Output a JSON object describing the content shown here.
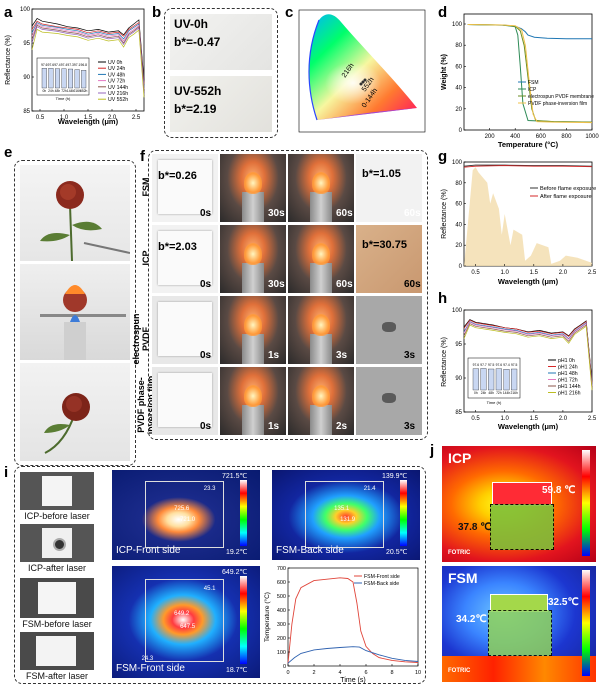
{
  "panels": {
    "a": {
      "letter": "a",
      "ylabel": "Reflectance (%)",
      "xlabel": "Wavelength (μm)",
      "yticks": [
        "100",
        "95",
        "90",
        "85"
      ],
      "xticks": [
        "0.5",
        "1.0",
        "1.5",
        "2.0",
        "2.5"
      ],
      "legend": [
        "UV 0h",
        "UV 24h",
        "UV 48h",
        "UV 72h",
        "UV 144h",
        "UV 216h",
        "UV 552h"
      ],
      "colors": [
        "#000000",
        "#d62728",
        "#1f77b4",
        "#e377c2",
        "#8c564b",
        "#9467bd",
        "#bcbd22"
      ],
      "inset": {
        "bar_labels": [
          "97.6",
          "97.6",
          "97.4",
          "97.4",
          "97.3",
          "97.1",
          "96.8"
        ],
        "x_ticks": [
          "0h",
          "24h",
          "48h",
          "72h",
          "144h",
          "216h",
          "552h"
        ],
        "xlabel": "Time (h)",
        "ylabel": "Reflectance (%)"
      }
    },
    "b": {
      "letter": "b",
      "top_title": "UV-0h",
      "top_value": "b*=-0.47",
      "bottom_title": "UV-552h",
      "bottom_value": "b*=2.19"
    },
    "c": {
      "letter": "c",
      "annotations": [
        "216h",
        "552h",
        "0-144h"
      ]
    },
    "d": {
      "letter": "d",
      "ylabel": "Weight (%)",
      "xlabel": "Temperature (°C)",
      "yticks": [
        "100",
        "80",
        "60",
        "40",
        "20",
        "0"
      ],
      "xticks": [
        "200",
        "400",
        "600",
        "800",
        "1000"
      ],
      "legend": [
        "FSM",
        "ICP",
        "electrospun PVDF membrane",
        "PVDF phase-inversion film"
      ],
      "colors": [
        "#1f77b4",
        "#2e8b57",
        "#6b8e23",
        "#f0c04a"
      ]
    },
    "e": {
      "letter": "e"
    },
    "f": {
      "letter": "f",
      "rows": [
        {
          "label": "FSM",
          "b_start": "b*=0.26",
          "b_end": "b*=1.05",
          "times": [
            "0s",
            "30s",
            "60s",
            "60s"
          ]
        },
        {
          "label": "ICP",
          "b_start": "b*=2.03",
          "b_end": "b*=30.75",
          "times": [
            "0s",
            "30s",
            "60s",
            "60s"
          ]
        },
        {
          "label": "electrospun PVDF membrane",
          "times": [
            "0s",
            "1s",
            "3s",
            "3s"
          ]
        },
        {
          "label": "PVDF phase-inversion film",
          "times": [
            "0s",
            "1s",
            "2s",
            "3s"
          ]
        }
      ]
    },
    "g": {
      "letter": "g",
      "ylabel": "Reflectance (%)",
      "xlabel": "Wavelength (μm)",
      "yticks": [
        "100",
        "80",
        "60",
        "40",
        "20",
        "0"
      ],
      "xticks": [
        "0.5",
        "1.0",
        "1.5",
        "2.0",
        "2.5"
      ],
      "legend": [
        "Before flame exposure",
        "After flame exposure"
      ],
      "colors": [
        "#333333",
        "#d62728"
      ]
    },
    "h": {
      "letter": "h",
      "ylabel": "Reflectance (%)",
      "xlabel": "Wavelength (μm)",
      "yticks": [
        "100",
        "95",
        "90",
        "85"
      ],
      "xticks": [
        "0.5",
        "1.0",
        "1.5",
        "2.0",
        "2.5"
      ],
      "legend": [
        "pH1 0h",
        "pH1 24h",
        "pH1 48h",
        "pH1 72h",
        "pH1 144h",
        "pH1 216h"
      ],
      "colors": [
        "#000000",
        "#d62728",
        "#1f77b4",
        "#e377c2",
        "#8c564b",
        "#bcbd22"
      ],
      "inset": {
        "bar_labels": [
          "97.6",
          "97.7",
          "97.5",
          "97.6",
          "97.4",
          "97.5"
        ],
        "x_ticks": [
          "0h",
          "24h",
          "48h",
          "72h",
          "144h",
          "216h"
        ],
        "xlabel": "Time (h)",
        "ylabel": "Reflectance (%)"
      }
    },
    "i": {
      "letter": "i",
      "photos": [
        "ICP-before laser",
        "ICP-after laser",
        "FSM-before laser",
        "FSM-after laser"
      ],
      "thermal": [
        {
          "caption": "ICP-Front side",
          "max": "721.5℃",
          "min": "19.2℃",
          "spots": [
            "23.3",
            "725.6",
            "721.0"
          ]
        },
        {
          "caption": "FSM-Back side",
          "max": "139.9℃",
          "min": "20.5℃",
          "spots": [
            "21.4",
            "135.1",
            "131.9"
          ]
        },
        {
          "caption": "FSM-Front side",
          "max": "649.2℃",
          "min": "18.7℃",
          "spots": [
            "45.1",
            "649.2",
            "647.5",
            "24.3"
          ]
        }
      ],
      "chart": {
        "ylabel": "Temperature (°C)",
        "xlabel": "Time (s)",
        "yticks": [
          "700",
          "600",
          "500",
          "400",
          "300",
          "200",
          "100",
          "0"
        ],
        "xticks": [
          "0",
          "2",
          "4",
          "6",
          "8",
          "10"
        ],
        "legend": [
          "FSM-Front side",
          "FSM-Back side"
        ],
        "colors": [
          "#e0453a",
          "#2f62b0"
        ]
      }
    },
    "j": {
      "letter": "j",
      "top": {
        "name": "ICP",
        "hot": "59.8 ℃",
        "side": "37.8 ℃",
        "brand": "FOTRIC"
      },
      "bottom": {
        "name": "FSM",
        "hot": "32.5℃",
        "side": "34.2℃",
        "brand": "FOTRIC"
      }
    }
  },
  "chart_data": [
    {
      "type": "line",
      "ylim": [
        85,
        100
      ],
      "xlim": [
        0.3,
        2.5
      ],
      "series": [
        {
          "name": "UV 0h",
          "x": [
            0.3,
            0.4,
            0.5,
            0.8,
            1.0,
            1.2,
            1.4,
            1.6,
            1.8,
            2.0,
            2.1,
            2.2,
            2.3,
            2.4,
            2.5
          ],
          "y": [
            97.5,
            98.6,
            98.2,
            97.8,
            97.4,
            97.2,
            96.8,
            97.0,
            96.6,
            96.8,
            96.2,
            97.2,
            97.8,
            98.4,
            89.5
          ]
        },
        {
          "name": "UV 24h",
          "x": [
            0.3,
            0.4,
            0.5,
            0.8,
            1.0,
            1.2,
            1.4,
            1.6,
            1.8,
            2.0,
            2.1,
            2.2,
            2.3,
            2.4,
            2.5
          ],
          "y": [
            97.0,
            98.2,
            97.8,
            97.4,
            97.2,
            97.0,
            96.5,
            96.8,
            96.4,
            96.6,
            96.0,
            97.0,
            97.5,
            98.0,
            89.0
          ]
        },
        {
          "name": "UV 48h",
          "x": [
            0.3,
            0.4,
            0.5,
            0.8,
            1.0,
            1.2,
            1.4,
            1.6,
            1.8,
            2.0,
            2.1,
            2.2,
            2.3,
            2.4,
            2.5
          ],
          "y": [
            96.5,
            98.0,
            97.6,
            97.3,
            97.0,
            96.8,
            96.3,
            96.6,
            96.2,
            96.4,
            95.6,
            96.8,
            97.3,
            97.8,
            88.6
          ]
        },
        {
          "name": "UV 72h",
          "x": [
            0.3,
            0.4,
            0.5,
            0.8,
            1.0,
            1.2,
            1.4,
            1.6,
            1.8,
            2.0,
            2.1,
            2.2,
            2.3,
            2.4,
            2.5
          ],
          "y": [
            96.0,
            97.8,
            97.4,
            97.1,
            96.8,
            96.6,
            96.1,
            96.4,
            96.0,
            96.2,
            95.3,
            96.5,
            97.0,
            97.6,
            88.2
          ]
        },
        {
          "name": "UV 144h",
          "x": [
            0.3,
            0.4,
            0.5,
            0.8,
            1.0,
            1.2,
            1.4,
            1.6,
            1.8,
            2.0,
            2.1,
            2.2,
            2.3,
            2.4,
            2.5
          ],
          "y": [
            95.5,
            97.6,
            97.2,
            96.9,
            96.6,
            96.4,
            95.9,
            96.2,
            95.8,
            96.0,
            95.0,
            96.3,
            96.8,
            97.4,
            87.8
          ]
        },
        {
          "name": "UV 216h",
          "x": [
            0.3,
            0.4,
            0.5,
            0.8,
            1.0,
            1.2,
            1.4,
            1.6,
            1.8,
            2.0,
            2.1,
            2.2,
            2.3,
            2.4,
            2.5
          ],
          "y": [
            95.0,
            97.4,
            97.0,
            96.7,
            96.4,
            96.2,
            95.7,
            96.0,
            95.6,
            95.8,
            94.8,
            96.1,
            96.6,
            97.2,
            87.4
          ]
        },
        {
          "name": "UV 552h",
          "x": [
            0.3,
            0.4,
            0.5,
            0.8,
            1.0,
            1.2,
            1.4,
            1.6,
            1.8,
            2.0,
            2.1,
            2.2,
            2.3,
            2.4,
            2.5
          ],
          "y": [
            94.0,
            97.0,
            96.6,
            96.4,
            96.1,
            95.9,
            95.4,
            95.7,
            95.3,
            95.5,
            94.4,
            95.8,
            96.3,
            96.9,
            87.0
          ]
        }
      ]
    },
    {
      "type": "bar",
      "categories": [
        "0h",
        "24h",
        "48h",
        "72h",
        "144h",
        "216h",
        "552h"
      ],
      "values": [
        97.6,
        97.6,
        97.4,
        97.4,
        97.3,
        97.1,
        96.8
      ],
      "xlabel": "Time (h)",
      "ylabel": "Reflectance (%)"
    },
    {
      "type": "line",
      "xlabel": "Temperature (°C)",
      "ylabel": "Weight (%)",
      "ylim": [
        0,
        110
      ],
      "xlim": [
        0,
        1000
      ],
      "series": [
        {
          "name": "FSM",
          "x": [
            30,
            300,
            400,
            450,
            480,
            500,
            550,
            650,
            800,
            1000
          ],
          "y": [
            100,
            99.5,
            98.5,
            96,
            93,
            90,
            88,
            87,
            86.5,
            86.5
          ]
        },
        {
          "name": "ICP",
          "x": [
            30,
            300,
            400,
            420,
            440,
            460,
            500,
            700,
            1000
          ],
          "y": [
            100,
            99.5,
            98,
            90,
            60,
            25,
            9,
            8,
            7.5
          ]
        },
        {
          "name": "electrospun PVDF membrane",
          "x": [
            30,
            300,
            400,
            440,
            470,
            500,
            530,
            560,
            700,
            1000
          ],
          "y": [
            100,
            99.6,
            98.5,
            94,
            80,
            50,
            20,
            9,
            8,
            7.5
          ]
        },
        {
          "name": "PVDF phase-inversion film",
          "x": [
            30,
            300,
            400,
            450,
            480,
            510,
            540,
            570,
            700,
            1000
          ],
          "y": [
            100,
            99.6,
            98.8,
            95,
            80,
            45,
            15,
            8,
            7.5,
            7
          ]
        }
      ]
    },
    {
      "type": "line",
      "xlabel": "Wavelength (μm)",
      "ylabel": "Reflectance (%)",
      "ylim": [
        0,
        100
      ],
      "xlim": [
        0.3,
        2.5
      ],
      "series": [
        {
          "name": "Before flame exposure",
          "x": [
            0.3,
            0.5,
            1.0,
            1.5,
            2.0,
            2.5
          ],
          "y": [
            96,
            97,
            97,
            96.5,
            96.5,
            96
          ]
        },
        {
          "name": "After flame exposure",
          "x": [
            0.3,
            0.5,
            1.0,
            1.5,
            2.0,
            2.5
          ],
          "y": [
            95,
            96,
            96.5,
            96,
            96,
            95.5
          ]
        }
      ]
    },
    {
      "type": "line",
      "ylim": [
        85,
        100
      ],
      "xlim": [
        0.3,
        2.5
      ],
      "series": [
        {
          "name": "pH1 0h",
          "x": [
            0.3,
            0.4,
            0.5,
            0.8,
            1.0,
            1.2,
            1.4,
            1.6,
            1.8,
            2.0,
            2.1,
            2.2,
            2.3,
            2.4,
            2.5
          ],
          "y": [
            97.5,
            98.6,
            98.2,
            97.8,
            97.4,
            97.2,
            96.8,
            97.0,
            96.6,
            96.8,
            96.2,
            97.2,
            97.8,
            98.4,
            89.5
          ]
        },
        {
          "name": "pH1 24h",
          "x": [
            0.3,
            0.4,
            0.5,
            0.8,
            1.0,
            1.2,
            1.4,
            1.6,
            1.8,
            2.0,
            2.1,
            2.2,
            2.3,
            2.4,
            2.5
          ],
          "y": [
            97.3,
            98.5,
            98.1,
            97.7,
            97.4,
            97.2,
            96.7,
            96.9,
            96.5,
            96.7,
            96.1,
            97.1,
            97.7,
            98.3,
            89.3
          ]
        },
        {
          "name": "pH1 48h",
          "x": [
            0.3,
            0.4,
            0.5,
            0.8,
            1.0,
            1.2,
            1.4,
            1.6,
            1.8,
            2.0,
            2.1,
            2.2,
            2.3,
            2.4,
            2.5
          ],
          "y": [
            96.8,
            98.3,
            97.9,
            97.5,
            97.2,
            97.0,
            96.5,
            96.7,
            96.3,
            96.5,
            95.8,
            96.9,
            97.5,
            98.1,
            89.0
          ]
        },
        {
          "name": "pH1 72h",
          "x": [
            0.3,
            0.4,
            0.5,
            0.8,
            1.0,
            1.2,
            1.4,
            1.6,
            1.8,
            2.0,
            2.1,
            2.2,
            2.3,
            2.4,
            2.5
          ],
          "y": [
            96.6,
            98.2,
            97.8,
            97.4,
            97.1,
            96.9,
            96.4,
            96.6,
            96.2,
            96.4,
            95.7,
            96.8,
            97.4,
            98.0,
            88.8
          ]
        },
        {
          "name": "pH1 144h",
          "x": [
            0.3,
            0.4,
            0.5,
            0.8,
            1.0,
            1.2,
            1.4,
            1.6,
            1.8,
            2.0,
            2.1,
            2.2,
            2.3,
            2.4,
            2.5
          ],
          "y": [
            96.2,
            98.0,
            97.6,
            97.2,
            96.9,
            96.7,
            96.2,
            96.4,
            96.0,
            96.2,
            95.4,
            96.6,
            97.2,
            97.8,
            88.5
          ]
        },
        {
          "name": "pH1 216h",
          "x": [
            0.3,
            0.4,
            0.5,
            0.8,
            1.0,
            1.2,
            1.4,
            1.6,
            1.8,
            2.0,
            2.1,
            2.2,
            2.3,
            2.4,
            2.5
          ],
          "y": [
            95.8,
            97.8,
            97.4,
            97.0,
            96.7,
            96.5,
            96.0,
            96.2,
            95.8,
            96.0,
            95.1,
            96.4,
            97.0,
            97.6,
            88.2
          ]
        }
      ]
    },
    {
      "type": "bar",
      "categories": [
        "0h",
        "24h",
        "48h",
        "72h",
        "144h",
        "216h"
      ],
      "values": [
        97.6,
        97.7,
        97.5,
        97.6,
        97.4,
        97.5
      ],
      "xlabel": "Time (h)",
      "ylabel": "Reflectance (%)"
    },
    {
      "type": "line",
      "xlabel": "Time (s)",
      "ylabel": "Temperature (°C)",
      "ylim": [
        0,
        700
      ],
      "xlim": [
        0,
        10
      ],
      "series": [
        {
          "name": "FSM-Front side",
          "x": [
            0,
            0.3,
            0.6,
            1,
            2,
            3,
            4,
            4.6,
            5,
            5.3,
            5.6,
            6,
            6.5,
            7,
            8,
            9,
            10
          ],
          "y": [
            20,
            300,
            480,
            560,
            610,
            620,
            630,
            625,
            600,
            450,
            250,
            140,
            90,
            60,
            40,
            30,
            25
          ]
        },
        {
          "name": "FSM-Back side",
          "x": [
            0,
            0.5,
            1,
            2,
            3,
            4,
            5,
            5.5,
            6,
            7,
            8,
            9,
            10
          ],
          "y": [
            20,
            60,
            90,
            115,
            125,
            132,
            138,
            135,
            110,
            80,
            55,
            40,
            32
          ]
        }
      ]
    }
  ]
}
